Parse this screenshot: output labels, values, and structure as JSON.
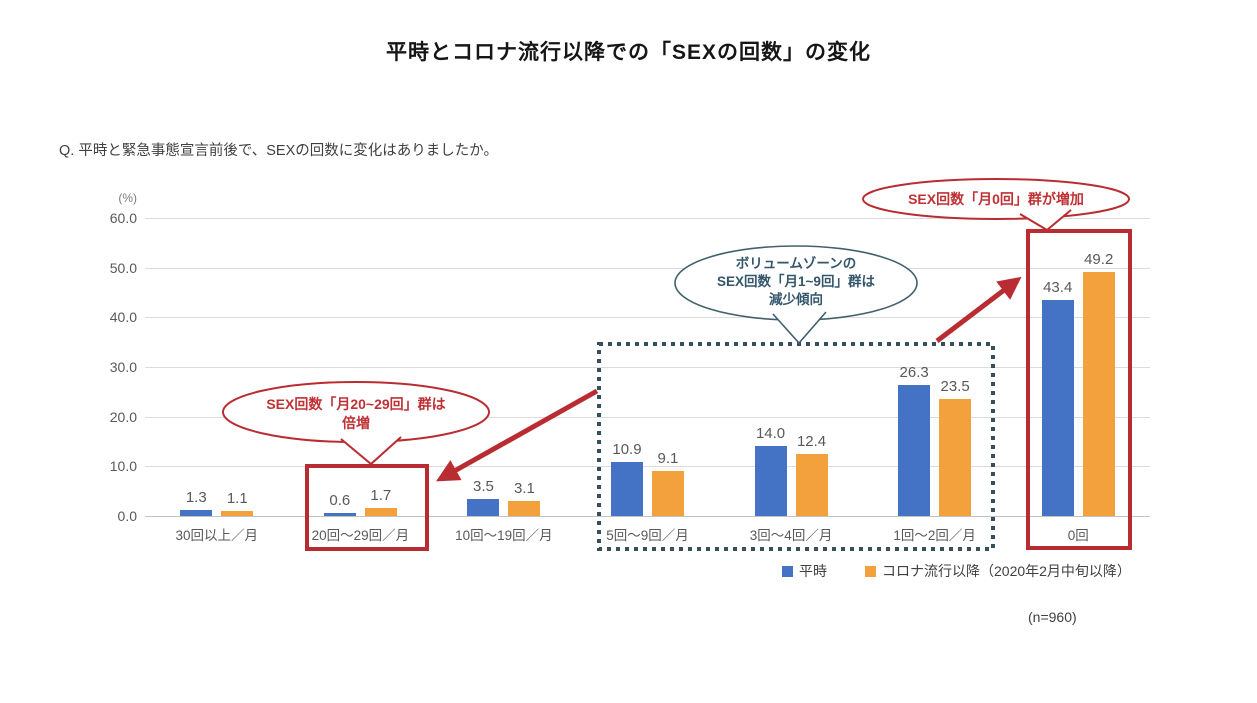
{
  "title": "平時とコロナ流行以降での「SEXの回数」の変化",
  "question": "Q. 平時と緊急事態宣言前後で、SEXの回数に変化はありましたか。",
  "note": "(n=960)",
  "chart_data": {
    "type": "bar",
    "unit_label": "(%)",
    "categories": [
      "30回以上／月",
      "20回～29回／月",
      "10回～19回／月",
      "5回～9回／月",
      "3回～4回／月",
      "1回～2回／月",
      "0回"
    ],
    "series": [
      {
        "name": "平時",
        "color": "#4472c4",
        "values": [
          1.3,
          0.6,
          3.5,
          10.9,
          14.0,
          26.3,
          43.4
        ]
      },
      {
        "name": "コロナ流行以降（2020年2月中旬以降）",
        "color": "#f2a13c",
        "values": [
          1.1,
          1.7,
          3.1,
          9.1,
          12.4,
          23.5,
          49.2
        ]
      }
    ],
    "ylim": [
      0,
      60
    ],
    "yticks": [
      "60.0",
      "50.0",
      "40.0",
      "30.0",
      "20.0",
      "10.0",
      "0.0"
    ],
    "grid": true,
    "legend_position": "bottom-right"
  },
  "annotations": {
    "bubble_20_29": {
      "lines": [
        "SEX回数「月20~29回」群は",
        "倍増"
      ],
      "color": "#bf3134"
    },
    "bubble_1_9": {
      "lines": [
        "ボリュームゾーンの",
        "SEX回数「月1~9回」群は",
        "減少傾向"
      ],
      "color": "#33566b"
    },
    "bubble_0": {
      "lines": [
        "SEX回数「月0回」群が増加"
      ],
      "color": "#bf3134"
    }
  },
  "colors": {
    "bar_blue": "#4472c4",
    "bar_orange": "#f2a13c",
    "highlight_red": "#b92d32",
    "dotted_slate": "#35505c",
    "gridline": "#dcdcdc",
    "text_gray": "#595959"
  }
}
